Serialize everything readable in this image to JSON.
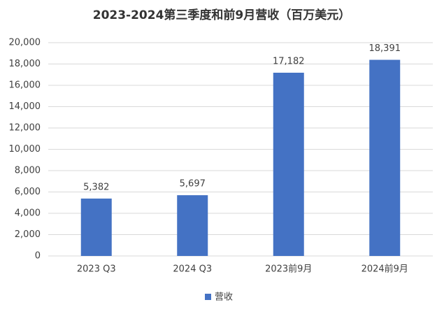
{
  "chart_data": {
    "type": "bar",
    "title": "2023-2024第三季度和前9月营收（百万美元）",
    "categories": [
      "2023 Q3",
      "2024 Q3",
      "2023前9月",
      "2024前9月"
    ],
    "series": [
      {
        "name": "营收",
        "color": "#4472c4",
        "values": [
          5382,
          5697,
          17182,
          18391
        ],
        "value_labels": [
          "5,382",
          "5,697",
          "17,182",
          "18,391"
        ]
      }
    ],
    "ylim": [
      0,
      20000
    ],
    "yticks": [
      0,
      {
        "value": 2000,
        "label": "2,000"
      },
      {
        "value": 4000,
        "label": "4,000"
      },
      {
        "value": 6000,
        "label": "6,000"
      },
      {
        "value": 8000,
        "label": "8,000"
      },
      {
        "value": 10000,
        "label": "10,000"
      },
      {
        "value": 12000,
        "label": "12,000"
      },
      {
        "value": 14000,
        "label": "14,000"
      },
      {
        "value": 16000,
        "label": "16,000"
      },
      {
        "value": 18000,
        "label": "18,000"
      },
      {
        "value": 20000,
        "label": "20,000"
      }
    ],
    "grid": true,
    "legend": "bottom"
  }
}
